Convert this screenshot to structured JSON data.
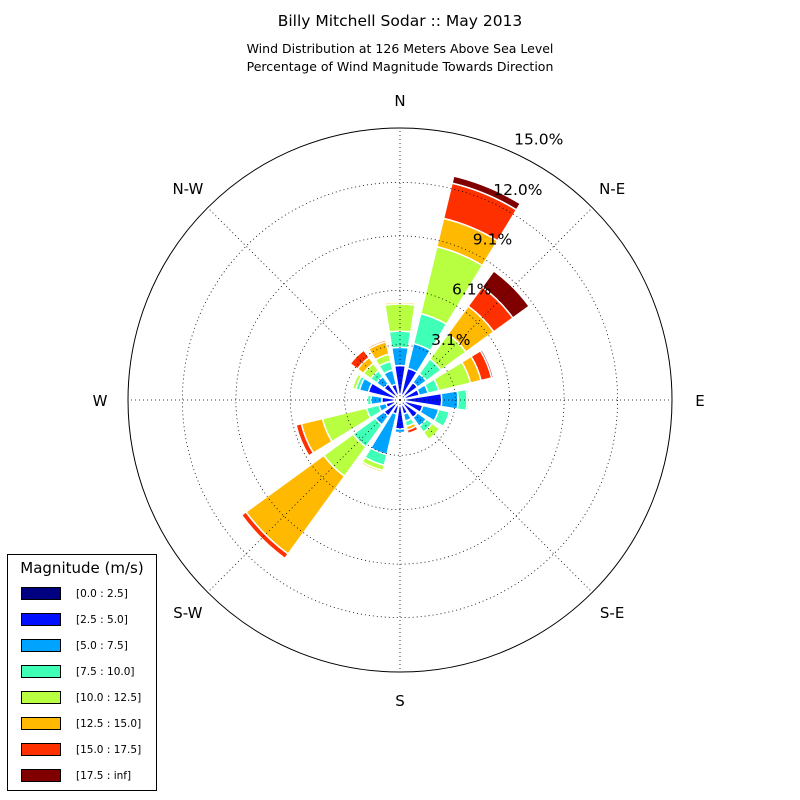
{
  "chart_data": {
    "type": "windrose",
    "title": "Billy Mitchell Sodar :: May 2013",
    "subtitle_lines": [
      "Wind Distribution at 126 Meters Above Sea Level",
      "Percentage of Wind Magnitude Towards Direction"
    ],
    "direction_labels": [
      "N",
      "N-E",
      "E",
      "S-E",
      "S",
      "S-W",
      "W",
      "N-W"
    ],
    "radial_ticks": [
      "3.1%",
      "6.1%",
      "9.1%",
      "12.0%",
      "15.0%"
    ],
    "radial_tick_values": [
      3.05,
      6.05,
      9.05,
      12.0,
      15.0
    ],
    "rmax": 15.0,
    "sector_width_deg": 22.5,
    "directions_deg": [
      0,
      22.5,
      45,
      67.5,
      90,
      112.5,
      135,
      157.5,
      180,
      202.5,
      225,
      247.5,
      270,
      292.5,
      315,
      337.5
    ],
    "grid": true,
    "legend_position": "lower-left",
    "legend": {
      "title": "Magnitude (m/s)",
      "bins": [
        "[0.0 : 2.5]",
        "[2.5 : 5.0]",
        "[5.0 : 7.5]",
        "[7.5 : 10.0]",
        "[10.0 : 12.5]",
        "[12.5 : 15.0]",
        "[15.0 : 17.5]",
        "[17.5 : inf]"
      ],
      "colors": [
        "#000080",
        "#0010ff",
        "#00a4ff",
        "#40ffb7",
        "#b7ff40",
        "#ffb900",
        "#ff3000",
        "#800000"
      ]
    },
    "series": [
      {
        "name": "[0.0 : 2.5]",
        "values": [
          0.3,
          0.3,
          0.3,
          0.3,
          0.3,
          0.3,
          0.3,
          0.3,
          0.3,
          0.3,
          0.3,
          0.3,
          0.3,
          0.3,
          0.3,
          0.3
        ]
      },
      {
        "name": "[2.5 : 5.0]",
        "values": [
          1.6,
          1.5,
          0.9,
          0.8,
          2.0,
          1.0,
          0.9,
          0.5,
          1.3,
          0.5,
          0.8,
          0.5,
          0.7,
          1.5,
          0.8,
          0.6
        ]
      },
      {
        "name": "[5.0 : 7.5]",
        "values": [
          1.0,
          1.4,
          0.6,
          0.5,
          0.9,
          0.9,
          0.6,
          0.4,
          0.2,
          2.3,
          0.6,
          0.4,
          0.6,
          0.5,
          0.5,
          0.8
        ]
      },
      {
        "name": "[7.5 : 10.0]",
        "values": [
          0.9,
          1.7,
          1.0,
          0.6,
          0.5,
          0.6,
          0.4,
          0.3,
          0.0,
          0.6,
          1.5,
          0.7,
          0.2,
          0.2,
          0.4,
          0.5
        ]
      },
      {
        "name": "[10.0 : 12.5]",
        "values": [
          1.5,
          3.8,
          1.7,
          1.8,
          0.1,
          0.0,
          0.5,
          0.0,
          0.0,
          0.3,
          2.0,
          2.5,
          0.0,
          0.2,
          0.5,
          0.4
        ]
      },
      {
        "name": "[12.5 : 15.0]",
        "values": [
          0.1,
          1.6,
          1.9,
          0.6,
          0.0,
          0.0,
          0.0,
          0.2,
          0.0,
          0.1,
          5.3,
          1.2,
          0.0,
          0.0,
          0.4,
          0.7
        ]
      },
      {
        "name": "[15.0 : 17.5]",
        "values": [
          0.0,
          2.0,
          1.3,
          0.6,
          0.0,
          0.0,
          0.0,
          0.2,
          0.0,
          0.0,
          0.3,
          0.3,
          0.0,
          0.0,
          0.5,
          0.1
        ]
      },
      {
        "name": "[17.5 : inf]",
        "values": [
          0.0,
          0.4,
          1.1,
          0.1,
          0.0,
          0.0,
          0.0,
          0.0,
          0.0,
          0.0,
          0.0,
          0.0,
          0.0,
          0.0,
          0.0,
          0.0
        ]
      }
    ]
  }
}
